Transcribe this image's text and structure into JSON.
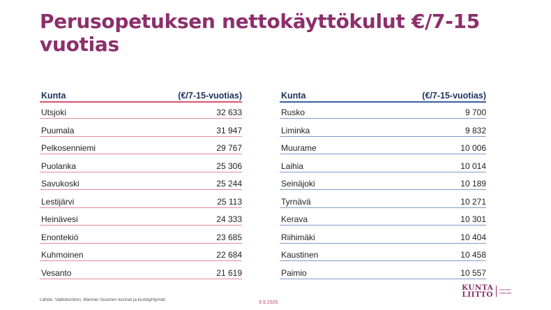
{
  "slide": {
    "title": "Perusopetuksen nettokäyttökulut €/7-15 vuotias"
  },
  "left_table": {
    "header_kunta": "Kunta",
    "header_value": "(€/7-15-vuotias)",
    "rows": [
      {
        "kunta": "Utsjoki",
        "value": "32 633"
      },
      {
        "kunta": "Puumala",
        "value": "31 947"
      },
      {
        "kunta": "Pelkosenniemi",
        "value": "29 767"
      },
      {
        "kunta": "Puolanka",
        "value": "25 306"
      },
      {
        "kunta": "Savukoski",
        "value": "25 244"
      },
      {
        "kunta": "Lestijärvi",
        "value": "25 113"
      },
      {
        "kunta": "Heinävesi",
        "value": "24 333"
      },
      {
        "kunta": "Enontekiö",
        "value": "23 685"
      },
      {
        "kunta": "Kuhmoinen",
        "value": "22 684"
      },
      {
        "kunta": "Vesanto",
        "value": "21 619"
      }
    ]
  },
  "right_table": {
    "header_kunta": "Kunta",
    "header_value": "(€/7-15-vuotias)",
    "rows": [
      {
        "kunta": "Rusko",
        "value": "9 700"
      },
      {
        "kunta": "Liminka",
        "value": "9 832"
      },
      {
        "kunta": "Muurame",
        "value": "10 006"
      },
      {
        "kunta": "Laihia",
        "value": "10 014"
      },
      {
        "kunta": "Seinäjoki",
        "value": "10 189"
      },
      {
        "kunta": "Tyrnävä",
        "value": "10 271"
      },
      {
        "kunta": "Kerava",
        "value": "10 301"
      },
      {
        "kunta": "Riihimäki",
        "value": "10 404"
      },
      {
        "kunta": "Kaustinen",
        "value": "10 458"
      },
      {
        "kunta": "Paimio",
        "value": "10 557"
      }
    ]
  },
  "footer": {
    "source": "Lähde: Valtiokonttori, Manner-Suomen kunnat ja kuntayhtymät.",
    "date": "9.9.2026",
    "logo_line1": "KUNTA",
    "logo_line2": "LIITTO",
    "logo_sub1": "Kommun-",
    "logo_sub2": "förbundet"
  },
  "colors": {
    "title": "#8c2f6b",
    "left_rule": "#d9546f",
    "right_rule": "#3a5f9c",
    "header_text": "#1f3360"
  }
}
